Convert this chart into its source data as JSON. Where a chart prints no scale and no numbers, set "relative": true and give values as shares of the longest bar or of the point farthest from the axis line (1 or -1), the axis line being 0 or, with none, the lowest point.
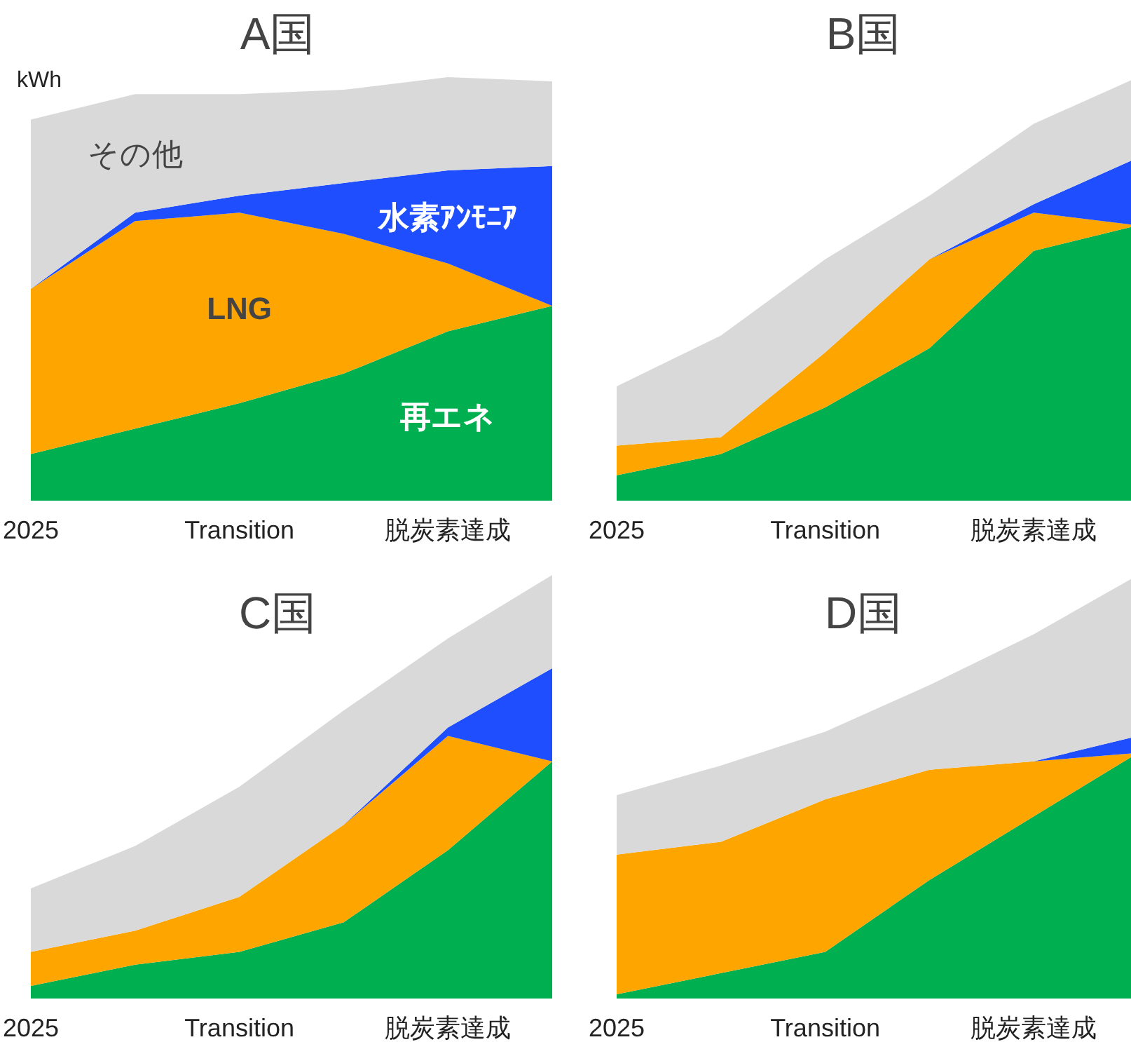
{
  "chart_data": [
    {
      "type": "area",
      "stacked": true,
      "relative": true,
      "title": "A国",
      "ylabel": "kWh",
      "categories": [
        "2025",
        null,
        "Transition",
        null,
        "脱炭素達成",
        null
      ],
      "series": [
        {
          "name": "再エネ",
          "color": "#00b050",
          "values": [
            0.11,
            0.17,
            0.23,
            0.3,
            0.4,
            0.46
          ]
        },
        {
          "name": "LNG",
          "color": "#ffa500",
          "values": [
            0.39,
            0.49,
            0.45,
            0.33,
            0.16,
            0
          ]
        },
        {
          "name": "水素ｱﾝﾓﾆｱ",
          "color": "#1f4eff",
          "values": [
            0,
            0.02,
            0.04,
            0.12,
            0.22,
            0.33
          ]
        },
        {
          "name": "その他",
          "color": "#d9d9d9",
          "values": [
            0.4,
            0.28,
            0.24,
            0.22,
            0.22,
            0.2
          ]
        }
      ]
    },
    {
      "type": "area",
      "stacked": true,
      "relative": true,
      "title": "B国",
      "categories": [
        "2025",
        null,
        "Transition",
        null,
        "脱炭素達成",
        null
      ],
      "series": [
        {
          "color": "#00b050",
          "values": [
            0.06,
            0.11,
            0.22,
            0.36,
            0.59,
            0.65
          ]
        },
        {
          "color": "#ffa500",
          "values": [
            0.07,
            0.04,
            0.13,
            0.21,
            0.09,
            0
          ]
        },
        {
          "color": "#1f4eff",
          "values": [
            0,
            0,
            0,
            0,
            0.02,
            0.16
          ]
        },
        {
          "color": "#d9d9d9",
          "values": [
            0.14,
            0.24,
            0.22,
            0.15,
            0.19,
            0.19
          ]
        }
      ]
    },
    {
      "type": "area",
      "stacked": true,
      "relative": true,
      "title": "C国",
      "categories": [
        "2025",
        null,
        "Transition",
        null,
        "脱炭素達成",
        null
      ],
      "series": [
        {
          "color": "#00b050",
          "values": [
            0.03,
            0.08,
            0.11,
            0.18,
            0.35,
            0.56
          ]
        },
        {
          "color": "#ffa500",
          "values": [
            0.08,
            0.08,
            0.13,
            0.23,
            0.27,
            0
          ]
        },
        {
          "color": "#1f4eff",
          "values": [
            0,
            0,
            0,
            0,
            0.02,
            0.22
          ]
        },
        {
          "color": "#d9d9d9",
          "values": [
            0.15,
            0.2,
            0.26,
            0.27,
            0.21,
            0.22
          ]
        }
      ]
    },
    {
      "type": "area",
      "stacked": true,
      "relative": true,
      "title": "D国",
      "categories": [
        "2025",
        null,
        "Transition",
        null,
        "脱炭素達成",
        null
      ],
      "series": [
        {
          "color": "#00b050",
          "values": [
            0.01,
            0.06,
            0.11,
            0.28,
            0.43,
            0.58
          ]
        },
        {
          "color": "#ffa500",
          "values": [
            0.33,
            0.31,
            0.36,
            0.26,
            0.13,
            0
          ]
        },
        {
          "color": "#1f4eff",
          "values": [
            0,
            0,
            0,
            0,
            0,
            0.04
          ]
        },
        {
          "color": "#d9d9d9",
          "values": [
            0.14,
            0.18,
            0.16,
            0.2,
            0.3,
            0.38
          ]
        }
      ]
    }
  ]
}
